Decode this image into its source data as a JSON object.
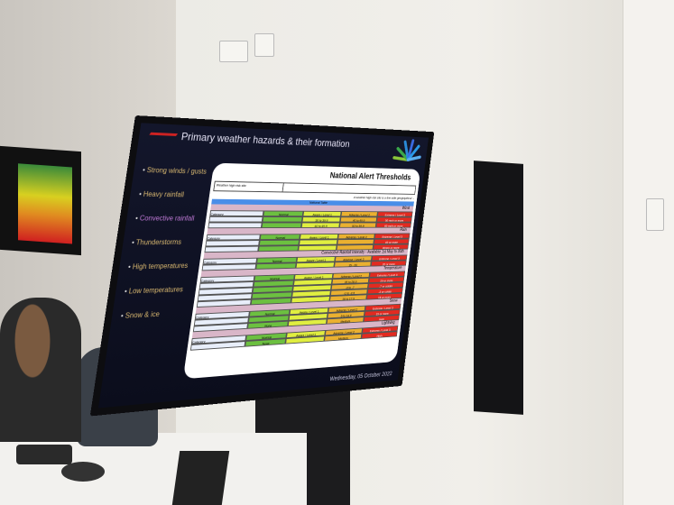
{
  "slide": {
    "title": "Primary weather hazards & their formation",
    "bullets": [
      "Strong winds / gusts",
      "Heavy rainfall",
      "Convective rainfall",
      "Thunderstorms",
      "High temperatures",
      "Low temperatures",
      "Snow & ice"
    ],
    "active_bullet": 2,
    "date": "Wednesday, 05 October 2022"
  },
  "document": {
    "title": "National Alert Thresholds",
    "header_label": "Weather high risk site",
    "note": "A weather high risk site is a line-side geographical ...",
    "table_label": "National Table",
    "levels": [
      "Normal",
      "Aware / Level 1",
      "Adverse / Level 2",
      "Extreme / Level 3"
    ],
    "category_label": "Category",
    "hazards": [
      {
        "name": "Wind",
        "rows": [
          [
            "",
            "",
            "30 to 39.9",
            "40 to 49.9",
            "50 mph or more"
          ],
          [
            "",
            "",
            "40 to 49.9",
            "50 to 59.9",
            "60 mph or more"
          ]
        ]
      },
      {
        "name": "Rain",
        "rows": [
          [
            "",
            "",
            "",
            "",
            "40 or more"
          ],
          [
            "",
            "",
            "",
            "",
            "30mm or more"
          ]
        ]
      },
      {
        "name": "Convective Rainfall Intensity - Available 1st May to 30th",
        "rows": [
          [
            "",
            "",
            "",
            "15 - 20",
            "20 or more"
          ]
        ]
      },
      {
        "name": "Temperature",
        "rows": [
          [
            "",
            "",
            "",
            "25 to 28.9",
            "29 or more"
          ],
          [
            "",
            "",
            "",
            "-3 to -7",
            "-7 or colder"
          ],
          [
            "",
            "",
            "",
            "-1 to -2.9",
            "-3 or colder"
          ],
          [
            "",
            "",
            "",
            "16 to 17.9",
            "18 or more"
          ]
        ]
      },
      {
        "name": "Snow",
        "rows": [
          [
            "",
            "",
            "",
            "5 to 14.9",
            "15 or more"
          ],
          [
            "",
            "None",
            "",
            "Medium",
            "High"
          ]
        ]
      },
      {
        "name": "Lightning",
        "rows": [
          [
            "",
            "None",
            "",
            "Medium",
            "High"
          ]
        ]
      }
    ]
  },
  "colors": {
    "normal": "#6cc040",
    "aware": "#e0ee40",
    "adverse": "#eab030",
    "extreme": "#e22a20",
    "slide_bg": "#13162b"
  }
}
